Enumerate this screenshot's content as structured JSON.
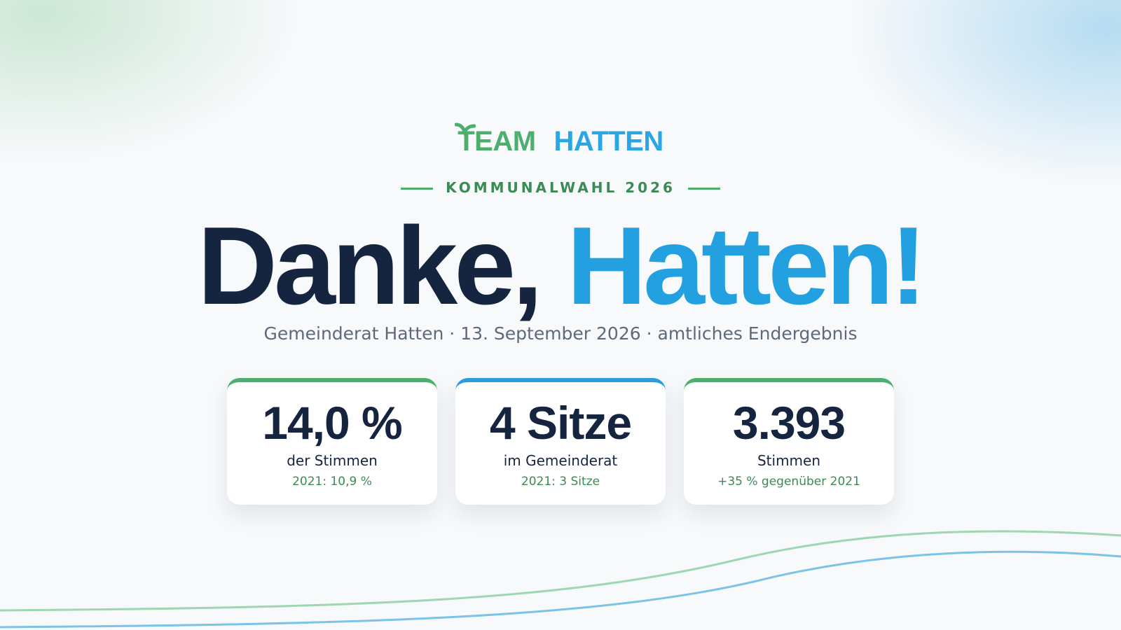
{
  "logo": {
    "team": "TEAM",
    "hatten": "HATTEN"
  },
  "kicker": "KOMMUNALWAHL 2026",
  "headline": {
    "part1": "Danke,",
    "part2": "Hatten!"
  },
  "subtitle": "Gemeinderat Hatten · 13. September 2026 · amtliches Endergebnis",
  "cards": [
    {
      "value": "14,0 %",
      "label": "der Stimmen",
      "note": "2021: 10,9 %",
      "accent": "#4caf6e"
    },
    {
      "value": "4 Sitze",
      "label": "im Gemeinderat",
      "note": "2021: 3 Sitze",
      "accent": "#2a9de0"
    },
    {
      "value": "3.393",
      "label": "Stimmen",
      "note": "+35 % gegenüber 2021",
      "accent": "#4caf6e"
    }
  ]
}
